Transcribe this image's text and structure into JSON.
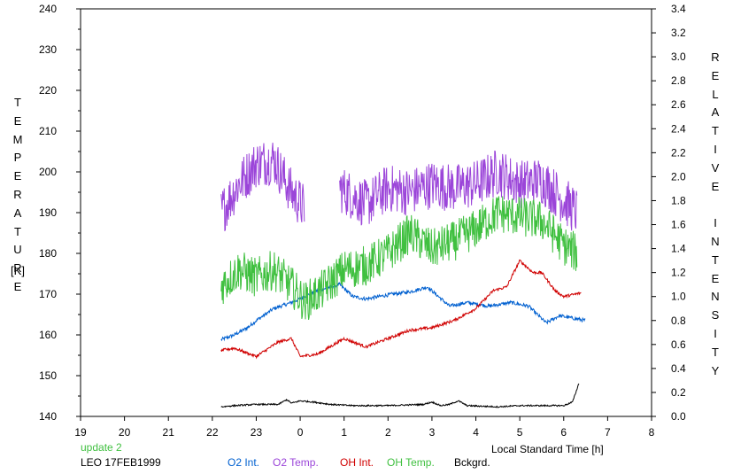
{
  "chart_data": {
    "type": "line",
    "x_ticks": [
      "19",
      "20",
      "21",
      "22",
      "23",
      "0",
      "1",
      "2",
      "3",
      "4",
      "5",
      "6",
      "7",
      "8"
    ],
    "xlabel": "Local Standard Time [h]",
    "y_left": {
      "label": "TEMPERATURE",
      "unit": "[K]",
      "ylim": [
        140,
        240
      ],
      "ticks": [
        "140",
        "150",
        "160",
        "170",
        "180",
        "190",
        "200",
        "210",
        "220",
        "230",
        "240"
      ]
    },
    "y_right": {
      "label": "RELATIVE INTENSITY",
      "ylim": [
        0.0,
        3.4
      ],
      "ticks": [
        "0.0",
        "0.2",
        "0.4",
        "0.6",
        "0.8",
        "1.0",
        "1.2",
        "1.4",
        "1.6",
        "1.8",
        "2.0",
        "2.2",
        "2.4",
        "2.6",
        "2.8",
        "3.0",
        "3.2",
        "3.4"
      ]
    },
    "grid": false,
    "legend_placement": "bottom",
    "series": [
      {
        "name": "O2 Int.",
        "axis": "right",
        "color": "#0060d0",
        "noise": 0.015,
        "x": [
          22.2,
          22.5,
          22.8,
          23.0,
          23.4,
          23.8,
          24.4,
          24.9,
          25.2,
          25.5,
          25.8,
          26.1,
          26.5,
          26.9,
          27.4,
          27.8,
          28.3,
          28.8,
          29.2,
          29.6,
          29.9,
          30.2,
          30.5
        ],
        "y": [
          0.64,
          0.68,
          0.74,
          0.8,
          0.9,
          0.95,
          1.05,
          1.1,
          1.0,
          0.98,
          1.0,
          1.02,
          1.04,
          1.08,
          0.92,
          0.95,
          0.92,
          0.95,
          0.92,
          0.78,
          0.84,
          0.82,
          0.8
        ]
      },
      {
        "name": "O2 Temp.",
        "axis": "left",
        "color": "#9b45d9",
        "noise": 6,
        "segments": [
          {
            "x": [
              22.2,
              22.6,
              23.0,
              23.4,
              23.8,
              24.1
            ],
            "y": [
              190,
              197,
              202,
              203,
              195,
              191
            ]
          },
          {
            "x": [
              24.9,
              25.5,
              26.0,
              26.5,
              27.0,
              27.5,
              28.0,
              28.5,
              29.0,
              29.5,
              30.0,
              30.3
            ],
            "y": [
              196,
              192,
              196,
              195,
              197,
              196,
              197,
              200,
              197,
              198,
              193,
              190
            ]
          }
        ]
      },
      {
        "name": "OH Int.",
        "axis": "right",
        "color": "#d00000",
        "noise": 0.012,
        "x": [
          22.2,
          22.5,
          23.0,
          23.5,
          23.8,
          24.0,
          24.4,
          25.0,
          25.5,
          26.0,
          26.5,
          27.0,
          27.5,
          28.0,
          28.4,
          28.7,
          29.0,
          29.3,
          29.5,
          29.8,
          30.0,
          30.4
        ],
        "y": [
          0.55,
          0.57,
          0.5,
          0.62,
          0.65,
          0.5,
          0.52,
          0.65,
          0.58,
          0.65,
          0.72,
          0.74,
          0.8,
          0.9,
          1.05,
          1.08,
          1.3,
          1.2,
          1.2,
          1.05,
          1.0,
          1.03
        ]
      },
      {
        "name": "OH Temp.",
        "axis": "left",
        "color": "#40c040",
        "noise": 5,
        "x": [
          22.2,
          22.6,
          23.0,
          23.4,
          23.8,
          24.1,
          24.5,
          25.0,
          25.5,
          26.0,
          26.5,
          27.0,
          27.5,
          28.0,
          28.5,
          29.0,
          29.5,
          30.0,
          30.3
        ],
        "y": [
          172,
          176,
          174,
          176,
          172,
          168,
          171,
          176,
          177,
          180,
          185,
          181,
          183,
          186,
          190,
          189,
          188,
          182,
          180
        ]
      },
      {
        "name": "Bckgrd.",
        "axis": "right",
        "color": "#000000",
        "noise": 0.006,
        "x": [
          22.2,
          22.5,
          23.0,
          23.5,
          23.7,
          23.8,
          24.0,
          24.3,
          24.7,
          25.2,
          26.0,
          26.8,
          27.0,
          27.2,
          27.4,
          27.6,
          27.8,
          28.5,
          29.0,
          29.5,
          30.0,
          30.2,
          30.35
        ],
        "y": [
          0.08,
          0.09,
          0.1,
          0.1,
          0.14,
          0.11,
          0.13,
          0.12,
          0.1,
          0.09,
          0.09,
          0.1,
          0.12,
          0.09,
          0.1,
          0.13,
          0.09,
          0.08,
          0.09,
          0.09,
          0.09,
          0.12,
          0.28
        ]
      }
    ]
  },
  "footer": {
    "update": "update 2",
    "station": "LEO 17FEB1999"
  },
  "colors": {
    "update": "#40c040",
    "text": "#000000"
  }
}
